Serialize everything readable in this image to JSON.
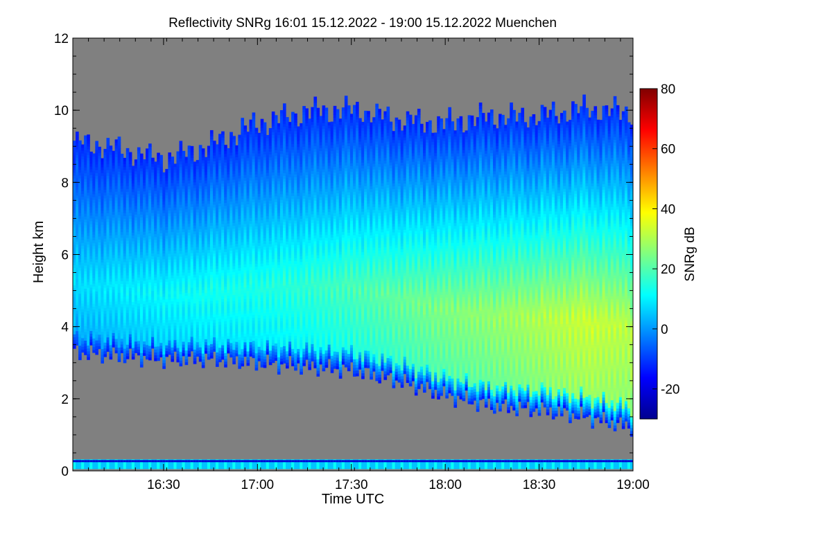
{
  "chart_data": {
    "type": "heatmap",
    "title": "Reflectivity SNRg   16:01 15.12.2022 - 19:00 15.12.2022 Muenchen",
    "xlabel": "Time UTC",
    "ylabel": "Height km",
    "colorbar_label": "SNRg dB",
    "x_start_minutes": 961,
    "x_end_minutes": 1140,
    "x_ticks": [
      {
        "minutes": 990,
        "label": "16:30"
      },
      {
        "minutes": 1020,
        "label": "17:00"
      },
      {
        "minutes": 1050,
        "label": "17:30"
      },
      {
        "minutes": 1080,
        "label": "18:00"
      },
      {
        "minutes": 1110,
        "label": "18:30"
      },
      {
        "minutes": 1140,
        "label": "19:00"
      }
    ],
    "ylim": [
      0,
      12
    ],
    "y_ticks": [
      0,
      2,
      4,
      6,
      8,
      10,
      12
    ],
    "clim": [
      -30,
      80
    ],
    "colorbar_ticks": [
      -20,
      0,
      20,
      40,
      60,
      80
    ],
    "background_color": "#808080",
    "colormap": [
      "#00008f",
      "#0000ff",
      "#0080ff",
      "#00ffff",
      "#80ff80",
      "#ffff00",
      "#ff8000",
      "#ff0000",
      "#800000"
    ],
    "cloud_profile": {
      "time": [
        "16:01",
        "16:15",
        "16:30",
        "16:45",
        "17:00",
        "17:15",
        "17:30",
        "17:45",
        "18:00",
        "18:15",
        "18:30",
        "18:45",
        "19:00"
      ],
      "cloud_top_km": [
        9.1,
        8.9,
        8.6,
        9.0,
        9.6,
        9.9,
        10.0,
        9.7,
        9.6,
        9.8,
        9.8,
        10.0,
        9.9
      ],
      "cloud_base_km": [
        3.3,
        3.2,
        3.1,
        3.1,
        3.0,
        2.9,
        2.8,
        2.5,
        2.1,
        1.8,
        1.7,
        1.5,
        1.2
      ],
      "max_snr_db": [
        8,
        10,
        12,
        14,
        15,
        17,
        20,
        23,
        26,
        28,
        31,
        34,
        32
      ]
    },
    "grid": false,
    "legend": "colorbar-right"
  }
}
